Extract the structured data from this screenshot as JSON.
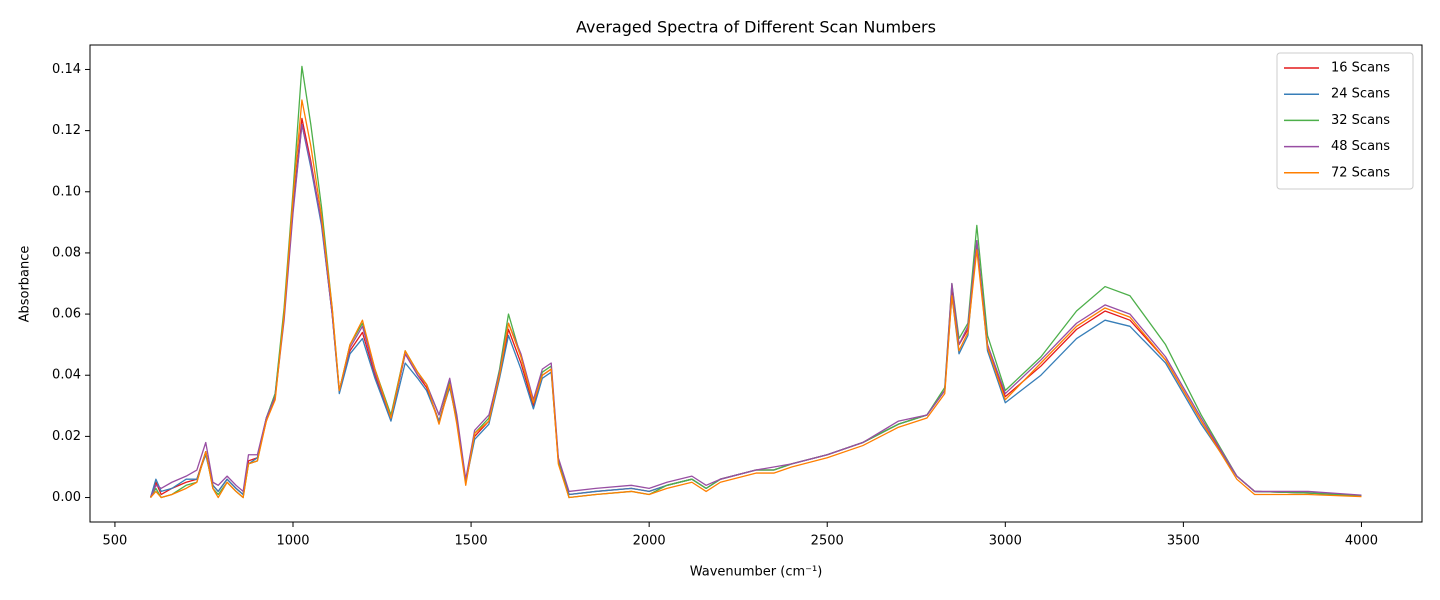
{
  "chart_data": {
    "type": "line",
    "title": "Averaged Spectra of Different Scan Numbers",
    "xlabel": "Wavenumber (cm⁻¹)",
    "ylabel": "Absorbance",
    "x": [
      600,
      615,
      630,
      660,
      700,
      730,
      755,
      775,
      790,
      815,
      840,
      860,
      875,
      900,
      925,
      950,
      975,
      1000,
      1025,
      1050,
      1080,
      1110,
      1130,
      1160,
      1195,
      1230,
      1275,
      1315,
      1350,
      1375,
      1410,
      1440,
      1460,
      1485,
      1510,
      1550,
      1580,
      1605,
      1640,
      1675,
      1700,
      1725,
      1745,
      1775,
      1850,
      1950,
      2000,
      2050,
      2120,
      2160,
      2200,
      2300,
      2350,
      2400,
      2500,
      2600,
      2700,
      2780,
      2830,
      2850,
      2870,
      2895,
      2920,
      2950,
      3000,
      3100,
      3200,
      3280,
      3350,
      3450,
      3550,
      3650,
      3700,
      3850,
      4000
    ],
    "series": [
      {
        "name": "16 Scans",
        "color": "#e41a1c",
        "values": [
          0,
          0.005,
          0.001,
          0.003,
          0.005,
          0.006,
          0.015,
          0.004,
          0.002,
          0.006,
          0.003,
          0.001,
          0.012,
          0.013,
          0.025,
          0.033,
          0.06,
          0.095,
          0.124,
          0.11,
          0.09,
          0.06,
          0.035,
          0.048,
          0.054,
          0.04,
          0.026,
          0.047,
          0.04,
          0.036,
          0.025,
          0.037,
          0.025,
          0.005,
          0.02,
          0.025,
          0.04,
          0.055,
          0.044,
          0.03,
          0.04,
          0.042,
          0.012,
          0.001,
          0.002,
          0.003,
          0.002,
          0.004,
          0.006,
          0.003,
          0.006,
          0.009,
          0.009,
          0.011,
          0.014,
          0.018,
          0.024,
          0.027,
          0.035,
          0.068,
          0.05,
          0.055,
          0.083,
          0.05,
          0.033,
          0.043,
          0.055,
          0.061,
          0.058,
          0.045,
          0.025,
          0.007,
          0.002,
          0.0015,
          0.0005
        ]
      },
      {
        "name": "24 Scans",
        "color": "#377eb8",
        "values": [
          0,
          0.006,
          0.002,
          0.003,
          0.006,
          0.006,
          0.014,
          0.004,
          0.002,
          0.006,
          0.003,
          0.001,
          0.011,
          0.013,
          0.026,
          0.034,
          0.06,
          0.094,
          0.122,
          0.108,
          0.089,
          0.06,
          0.034,
          0.047,
          0.052,
          0.039,
          0.025,
          0.044,
          0.039,
          0.035,
          0.025,
          0.036,
          0.025,
          0.005,
          0.019,
          0.024,
          0.039,
          0.053,
          0.042,
          0.029,
          0.039,
          0.041,
          0.012,
          0.001,
          0.002,
          0.003,
          0.002,
          0.004,
          0.006,
          0.003,
          0.006,
          0.009,
          0.009,
          0.011,
          0.014,
          0.018,
          0.024,
          0.027,
          0.035,
          0.066,
          0.047,
          0.053,
          0.084,
          0.048,
          0.031,
          0.04,
          0.052,
          0.058,
          0.056,
          0.044,
          0.024,
          0.007,
          0.002,
          0.0015,
          0.0005
        ]
      },
      {
        "name": "32 Scans",
        "color": "#4daf4a",
        "values": [
          0,
          0.003,
          0,
          0.001,
          0.004,
          0.005,
          0.015,
          0.003,
          0.001,
          0.005,
          0.002,
          0,
          0.011,
          0.012,
          0.026,
          0.034,
          0.062,
          0.1,
          0.141,
          0.122,
          0.095,
          0.062,
          0.035,
          0.05,
          0.057,
          0.042,
          0.027,
          0.048,
          0.041,
          0.037,
          0.027,
          0.038,
          0.026,
          0.005,
          0.021,
          0.026,
          0.042,
          0.06,
          0.046,
          0.031,
          0.041,
          0.043,
          0.012,
          0,
          0.001,
          0.002,
          0.001,
          0.004,
          0.006,
          0.003,
          0.006,
          0.009,
          0.009,
          0.011,
          0.014,
          0.018,
          0.024,
          0.027,
          0.036,
          0.07,
          0.052,
          0.057,
          0.089,
          0.053,
          0.035,
          0.046,
          0.061,
          0.069,
          0.066,
          0.05,
          0.027,
          0.007,
          0.002,
          0.0015,
          0.0005
        ]
      },
      {
        "name": "48 Scans",
        "color": "#984ea3",
        "values": [
          0,
          0.004,
          0.003,
          0.005,
          0.007,
          0.009,
          0.018,
          0.005,
          0.004,
          0.007,
          0.004,
          0.002,
          0.014,
          0.014,
          0.026,
          0.033,
          0.058,
          0.093,
          0.122,
          0.109,
          0.09,
          0.06,
          0.035,
          0.049,
          0.056,
          0.041,
          0.026,
          0.047,
          0.04,
          0.037,
          0.027,
          0.039,
          0.027,
          0.006,
          0.022,
          0.027,
          0.041,
          0.057,
          0.047,
          0.032,
          0.042,
          0.044,
          0.013,
          0.002,
          0.003,
          0.004,
          0.003,
          0.005,
          0.007,
          0.004,
          0.006,
          0.009,
          0.01,
          0.011,
          0.014,
          0.018,
          0.025,
          0.027,
          0.035,
          0.07,
          0.05,
          0.056,
          0.084,
          0.05,
          0.034,
          0.045,
          0.057,
          0.063,
          0.06,
          0.046,
          0.026,
          0.007,
          0.002,
          0.002,
          0.0008
        ]
      },
      {
        "name": "72 Scans",
        "color": "#ff7f00",
        "values": [
          0,
          0.002,
          0,
          0.001,
          0.003,
          0.005,
          0.015,
          0.003,
          0,
          0.005,
          0.002,
          0,
          0.011,
          0.012,
          0.025,
          0.032,
          0.06,
          0.098,
          0.13,
          0.115,
          0.092,
          0.062,
          0.035,
          0.05,
          0.058,
          0.042,
          0.026,
          0.048,
          0.041,
          0.037,
          0.024,
          0.037,
          0.024,
          0.004,
          0.021,
          0.025,
          0.04,
          0.057,
          0.046,
          0.031,
          0.04,
          0.042,
          0.011,
          0,
          0.001,
          0.002,
          0.001,
          0.003,
          0.005,
          0.002,
          0.005,
          0.008,
          0.008,
          0.01,
          0.013,
          0.017,
          0.023,
          0.026,
          0.034,
          0.066,
          0.048,
          0.054,
          0.081,
          0.049,
          0.032,
          0.044,
          0.056,
          0.062,
          0.059,
          0.045,
          0.025,
          0.006,
          0.001,
          0.001,
          0.0003
        ]
      }
    ],
    "xlim": [
      430,
      4170
    ],
    "xticks": [
      500,
      1000,
      1500,
      2000,
      2500,
      3000,
      3500,
      4000
    ],
    "ylim": [
      -0.008,
      0.148
    ],
    "yticks": [
      {
        "value": 0,
        "label": "0.00"
      },
      {
        "value": 0.02,
        "label": "0.02"
      },
      {
        "value": 0.04,
        "label": "0.04"
      },
      {
        "value": 0.06,
        "label": "0.06"
      },
      {
        "value": 0.08,
        "label": "0.08"
      },
      {
        "value": 0.1,
        "label": "0.10"
      },
      {
        "value": 0.12,
        "label": "0.12"
      },
      {
        "value": 0.14,
        "label": "0.14"
      }
    ],
    "legend": "upper right"
  }
}
